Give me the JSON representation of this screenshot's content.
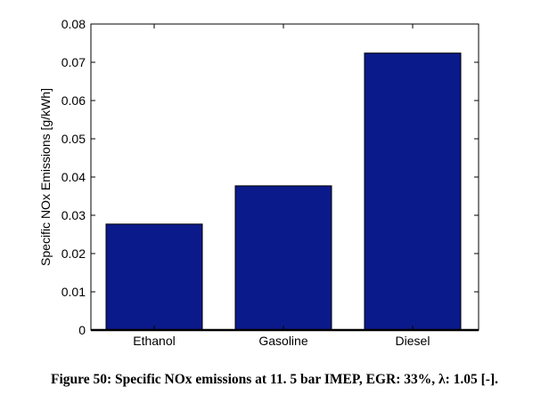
{
  "chart_data": {
    "type": "bar",
    "categories": [
      "Ethanol",
      "Gasoline",
      "Diesel"
    ],
    "values": [
      0.0277,
      0.0377,
      0.0724
    ],
    "ylabel": "Specific NOx Emissions [g/kWh]",
    "xlabel": "",
    "ylim": [
      0,
      0.08
    ],
    "yticks": [
      "0",
      "0.01",
      "0.02",
      "0.03",
      "0.04",
      "0.05",
      "0.06",
      "0.07",
      "0.08"
    ],
    "bar_color": "#0b1a8a",
    "grid": false,
    "legend": false
  },
  "caption": "Figure 50: Specific NOx emissions at 11. 5 bar IMEP, EGR: 33%, λ: 1.05 [-]."
}
